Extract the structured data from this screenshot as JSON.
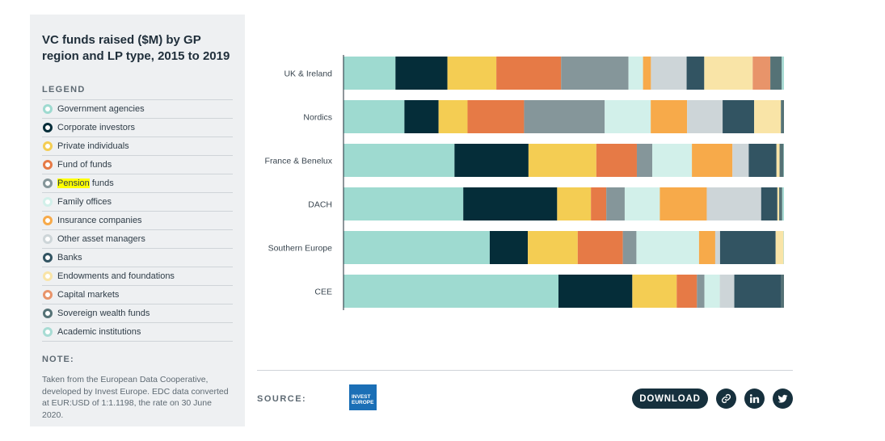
{
  "panel": {
    "title": "VC funds raised ($M) by GP region and LP type, 2015 to 2019",
    "legend_heading": "LEGEND",
    "note_heading": "NOTE:",
    "note_text": "Taken from the European Data Cooperative, developed by Invest Europe. EDC data converted at EUR:USD of 1:1.1198, the rate on 30 June 2020."
  },
  "legend": [
    {
      "label": "Government agencies",
      "color": "#9edad0"
    },
    {
      "label": "Corporate investors",
      "color": "#052d39"
    },
    {
      "label": "Private individuals",
      "color": "#f4cd53"
    },
    {
      "label": "Fund of funds",
      "color": "#e67a46"
    },
    {
      "label": "Pension funds",
      "color": "#85969a",
      "highlight": "Pension"
    },
    {
      "label": "Family offices",
      "color": "#d2f0ea"
    },
    {
      "label": "Insurance companies",
      "color": "#f7aa4a"
    },
    {
      "label": "Other asset managers",
      "color": "#cdd5d8"
    },
    {
      "label": "Banks",
      "color": "#325462"
    },
    {
      "label": "Endowments and foundations",
      "color": "#f9e4a7"
    },
    {
      "label": "Capital markets",
      "color": "#e8946a"
    },
    {
      "label": "Sovereign wealth funds",
      "color": "#557276"
    },
    {
      "label": "Academic institutions",
      "color": "#a8dcd4"
    }
  ],
  "chart_data": {
    "type": "bar",
    "orientation": "horizontal",
    "stacked": "100%",
    "categories": [
      "UK & Ireland",
      "Nordics",
      "France & Benelux",
      "DACH",
      "Southern Europe",
      "CEE"
    ],
    "series": [
      {
        "name": "Government agencies",
        "values": [
          11.8,
          13.9,
          25.2,
          27.3,
          33.4,
          48.9
        ]
      },
      {
        "name": "Corporate investors",
        "values": [
          11.8,
          7.8,
          16.8,
          21.4,
          8.7,
          16.8
        ]
      },
      {
        "name": "Private individuals",
        "values": [
          11.1,
          6.6,
          15.4,
          7.7,
          11.4,
          10.1
        ]
      },
      {
        "name": "Fund of funds",
        "values": [
          14.7,
          12.9,
          9.2,
          3.5,
          10.3,
          4.6
        ]
      },
      {
        "name": "Pension funds",
        "values": [
          15.3,
          18.4,
          3.5,
          4.2,
          3.1,
          1.7
        ]
      },
      {
        "name": "Family offices",
        "values": [
          3.3,
          10.5,
          9.0,
          8.0,
          14.3,
          3.5
        ]
      },
      {
        "name": "Insurance companies",
        "values": [
          1.8,
          8.3,
          9.2,
          10.7,
          3.7,
          0
        ]
      },
      {
        "name": "Other asset managers",
        "values": [
          8.1,
          8.1,
          3.7,
          12.4,
          1.1,
          3.3
        ]
      },
      {
        "name": "Banks",
        "values": [
          4.0,
          7.2,
          6.3,
          3.7,
          12.7,
          10.7
        ]
      },
      {
        "name": "Endowments and foundations",
        "values": [
          11.0,
          6.1,
          0.7,
          0.4,
          1.8,
          0
        ]
      },
      {
        "name": "Capital markets",
        "values": [
          4.0,
          0,
          0,
          0,
          0,
          0
        ]
      },
      {
        "name": "Sovereign wealth funds",
        "values": [
          2.6,
          0.7,
          0.9,
          0.7,
          0,
          0.6
        ]
      },
      {
        "name": "Academic institutions",
        "values": [
          0.5,
          0,
          0.1,
          0.4,
          0.1,
          0
        ]
      }
    ],
    "xlim": [
      0,
      100
    ],
    "grid": false
  },
  "footer": {
    "source_label": "SOURCE:",
    "logo_text": "INVEST EUROPE",
    "download_label": "DOWNLOAD"
  },
  "icons": {
    "link": "link-icon",
    "linkedin": "linkedin-icon",
    "twitter": "twitter-icon"
  }
}
